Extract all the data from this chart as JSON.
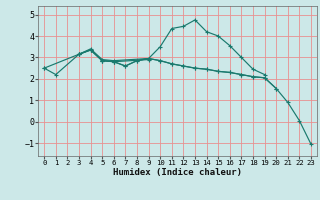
{
  "xlabel": "Humidex (Indice chaleur)",
  "background_color": "#cce8e8",
  "grid_color": "#e89090",
  "line_color": "#1a7a6e",
  "xlim": [
    -0.5,
    23.5
  ],
  "ylim": [
    -1.6,
    5.4
  ],
  "yticks": [
    -1,
    0,
    1,
    2,
    3,
    4,
    5
  ],
  "xticks": [
    0,
    1,
    2,
    3,
    4,
    5,
    6,
    7,
    8,
    9,
    10,
    11,
    12,
    13,
    14,
    15,
    16,
    17,
    18,
    19,
    20,
    21,
    22,
    23
  ],
  "lines": [
    {
      "x": [
        0,
        1,
        3,
        4,
        5,
        6,
        9,
        10,
        11,
        12,
        13,
        14,
        15,
        16,
        17,
        18,
        19
      ],
      "y": [
        2.5,
        2.2,
        3.15,
        3.4,
        2.9,
        2.85,
        2.95,
        3.5,
        4.35,
        4.45,
        4.75,
        4.2,
        4.0,
        3.55,
        3.0,
        2.45,
        2.2
      ]
    },
    {
      "x": [
        0,
        3,
        4,
        5,
        6,
        9
      ],
      "y": [
        2.5,
        3.15,
        3.35,
        2.85,
        2.8,
        2.9
      ]
    },
    {
      "x": [
        3,
        4,
        5,
        6,
        7,
        8,
        9,
        10,
        11,
        12,
        13,
        14,
        15,
        16,
        17,
        18,
        19,
        20
      ],
      "y": [
        3.15,
        3.35,
        2.85,
        2.8,
        2.6,
        2.85,
        2.95,
        2.85,
        2.7,
        2.6,
        2.5,
        2.45,
        2.35,
        2.3,
        2.2,
        2.1,
        2.05,
        1.55
      ]
    },
    {
      "x": [
        3,
        4,
        5,
        6,
        7,
        8,
        9,
        10,
        11,
        12,
        13,
        14,
        15,
        16,
        17,
        18,
        19,
        20,
        21,
        22,
        23
      ],
      "y": [
        3.15,
        3.35,
        2.85,
        2.8,
        2.6,
        2.85,
        2.95,
        2.85,
        2.7,
        2.6,
        2.5,
        2.45,
        2.35,
        2.3,
        2.2,
        2.1,
        2.05,
        1.55,
        0.9,
        0.05,
        -1.05
      ]
    }
  ]
}
